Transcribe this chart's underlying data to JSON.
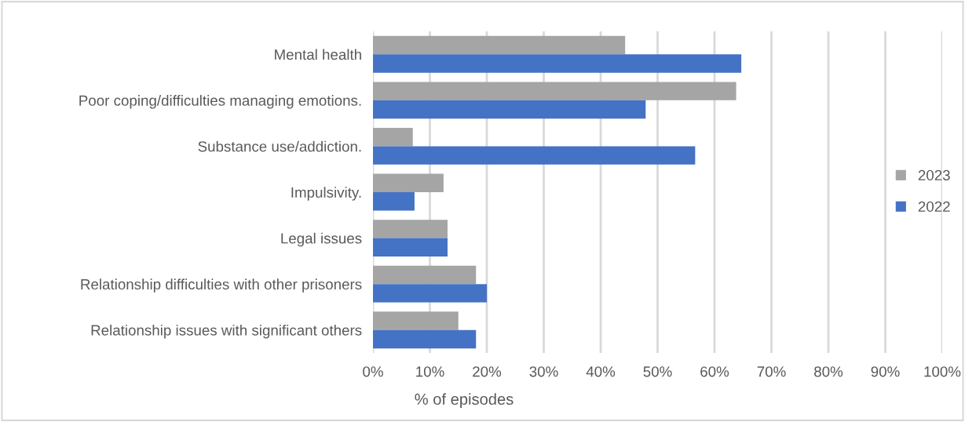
{
  "chart_data": {
    "type": "bar",
    "orientation": "horizontal",
    "xlabel": "% of episodes",
    "categories": [
      "Mental health",
      "Poor coping/difficulties managing emotions.",
      "Substance use/addiction.",
      "Impulsivity.",
      "Legal issues",
      "Relationship difficulties with other prisoners",
      "Relationship issues with significant others"
    ],
    "series": [
      {
        "name": "2023",
        "color": "#a5a5a5",
        "values": [
          44.3,
          63.8,
          7.0,
          12.4,
          13.1,
          18.1,
          15.0
        ]
      },
      {
        "name": "2022",
        "color": "#4472c4",
        "values": [
          64.7,
          47.9,
          56.6,
          7.3,
          13.1,
          20.0,
          18.1
        ]
      }
    ],
    "xlim": [
      0,
      100
    ],
    "xticks": [
      {
        "value": 0,
        "label": "0%"
      },
      {
        "value": 10,
        "label": "10%"
      },
      {
        "value": 20,
        "label": "20%"
      },
      {
        "value": 30,
        "label": "30%"
      },
      {
        "value": 40,
        "label": "40%"
      },
      {
        "value": 50,
        "label": "50%"
      },
      {
        "value": 60,
        "label": "60%"
      },
      {
        "value": 70,
        "label": "70%"
      },
      {
        "value": 80,
        "label": "80%"
      },
      {
        "value": 90,
        "label": "90%"
      },
      {
        "value": 100,
        "label": "100%"
      }
    ],
    "grid": "x",
    "legend": "right"
  }
}
